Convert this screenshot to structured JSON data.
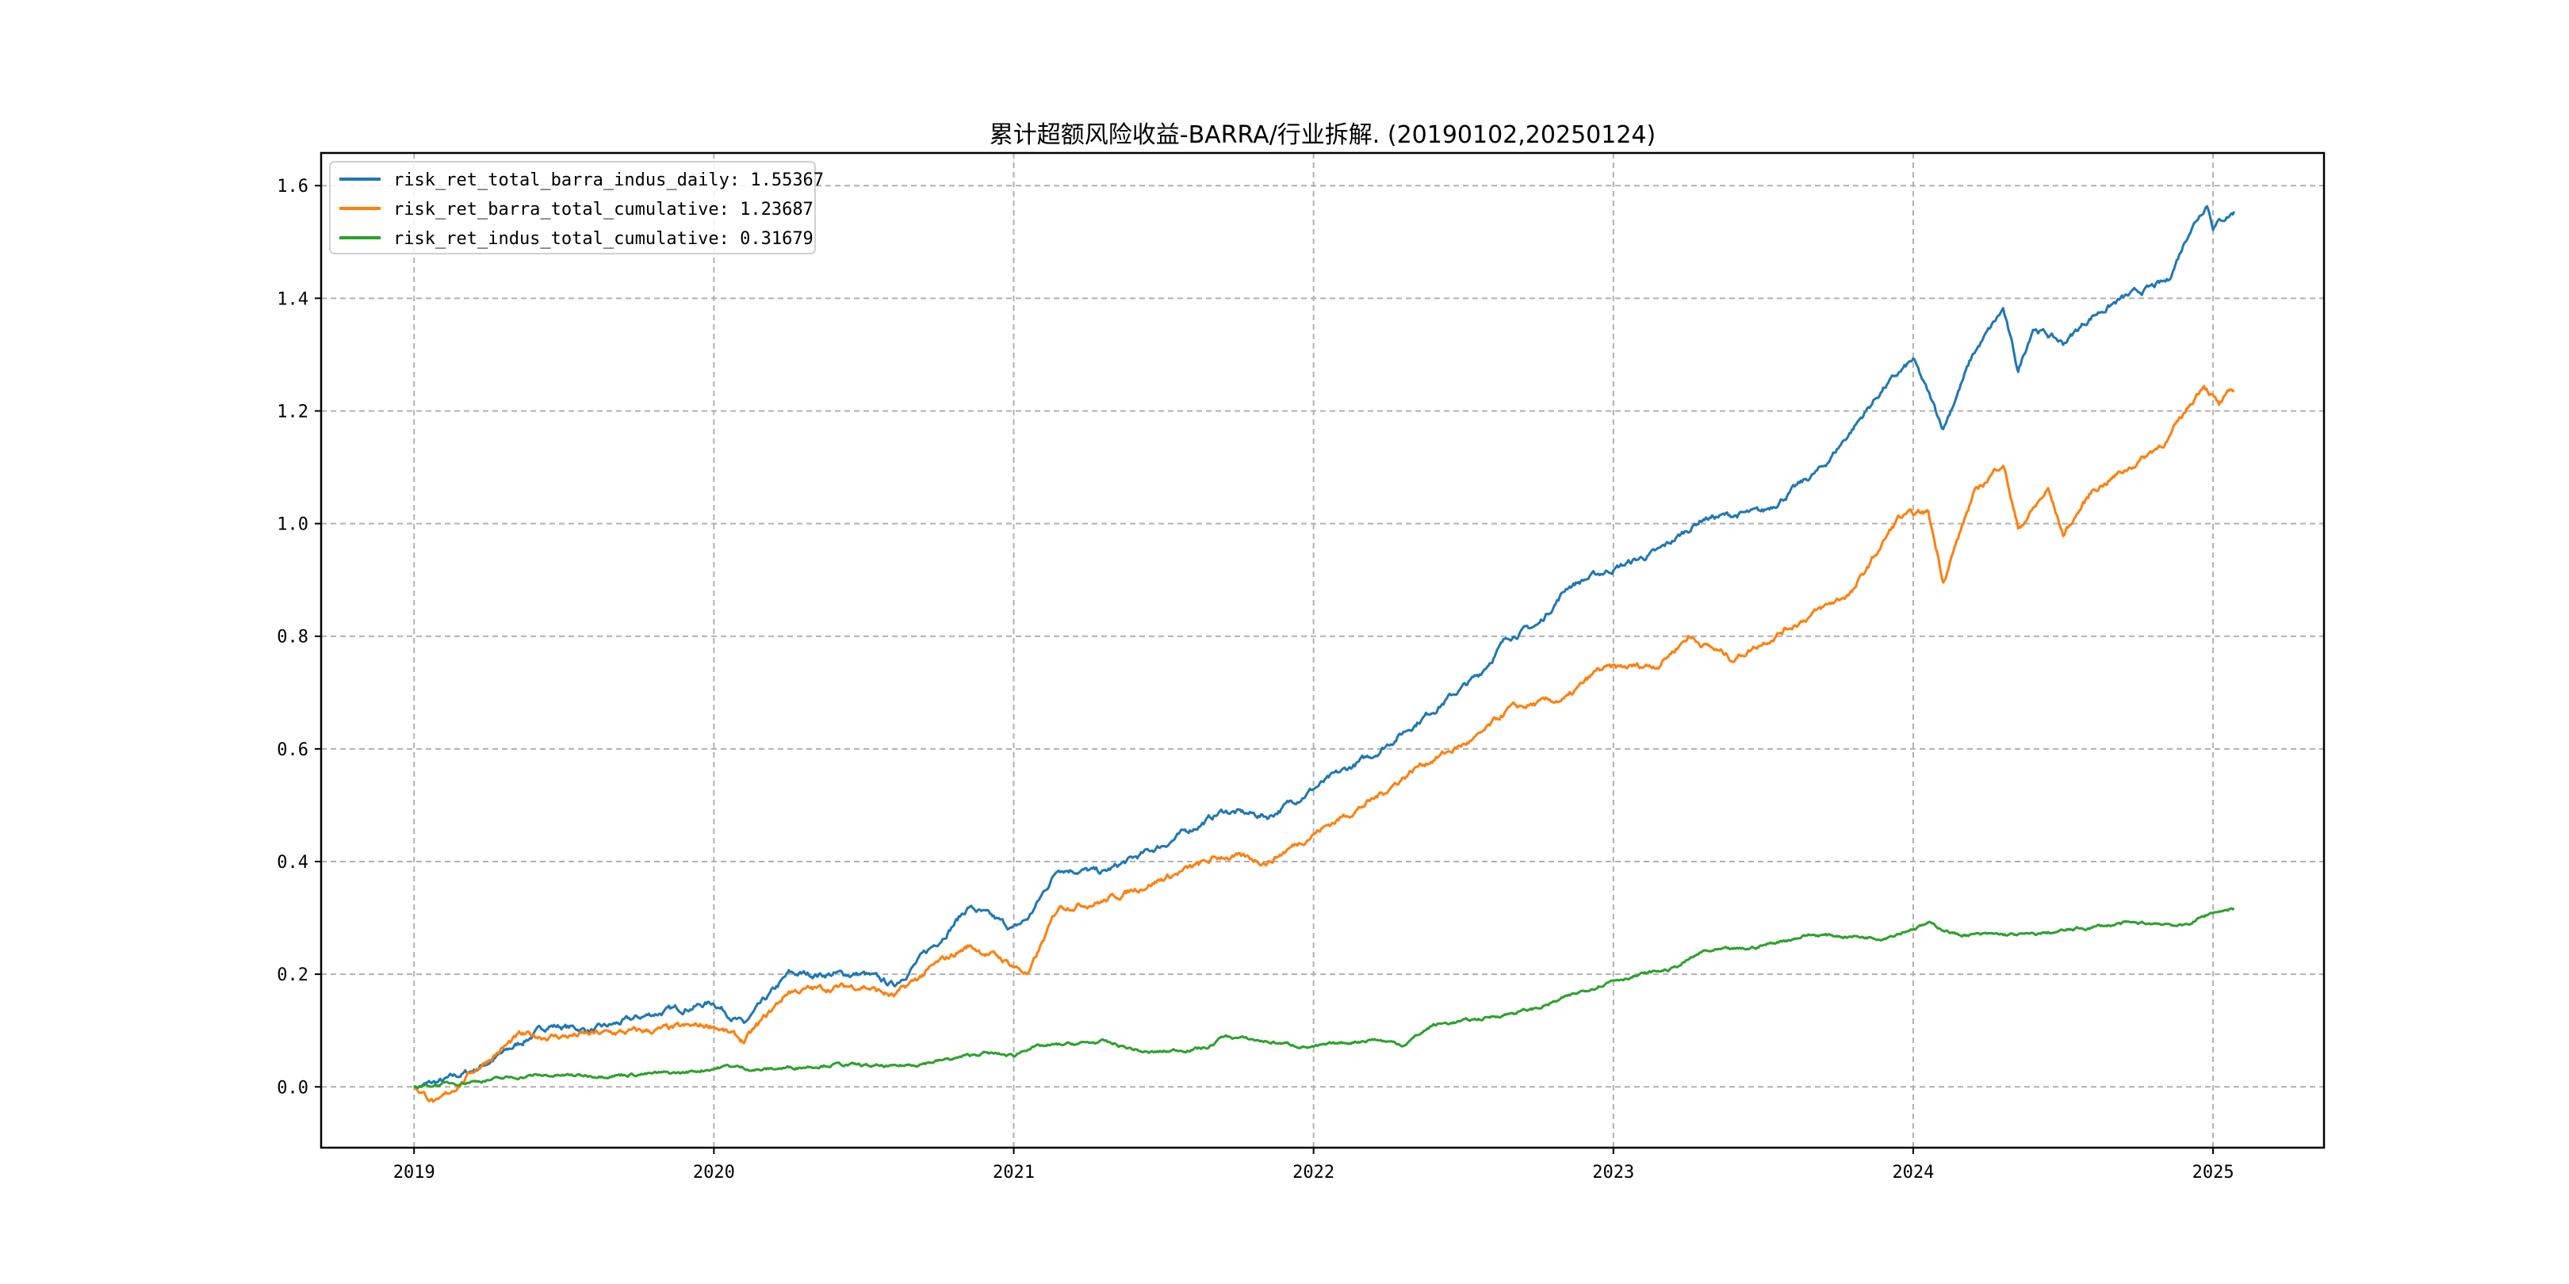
{
  "chart_data": {
    "type": "line",
    "title": "累计超额风险收益-BARRA/行业拆解. (20190102,20250124)",
    "xlabel": "",
    "ylabel": "",
    "xlim": [
      2018.69,
      2025.37
    ],
    "ylim": [
      -0.108,
      1.658
    ],
    "grid": true,
    "legend_placement": "top-left",
    "xticks": [
      2019,
      2020,
      2021,
      2022,
      2023,
      2024,
      2025
    ],
    "xtick_labels": [
      "2019",
      "2020",
      "2021",
      "2022",
      "2023",
      "2024",
      "2025"
    ],
    "yticks": [
      0.0,
      0.2,
      0.4,
      0.6,
      0.8,
      1.0,
      1.2,
      1.4,
      1.6
    ],
    "ytick_labels": [
      "0.0",
      "0.2",
      "0.4",
      "0.6",
      "0.8",
      "1.0",
      "1.2",
      "1.4",
      "1.6"
    ],
    "series": [
      {
        "name": "risk_ret_total_barra_indus_daily",
        "legend_label": "risk_ret_total_barra_indus_daily: 1.55367",
        "color": "#1f77b4",
        "x": [
          2019.0,
          2019.1,
          2019.2,
          2019.3,
          2019.45,
          2019.6,
          2019.8,
          2020.0,
          2020.1,
          2020.25,
          2020.5,
          2020.6,
          2020.75,
          2020.85,
          2021.0,
          2021.05,
          2021.15,
          2021.3,
          2021.5,
          2021.7,
          2021.85,
          2022.0,
          2022.2,
          2022.4,
          2022.55,
          2022.65,
          2022.75,
          2022.85,
          2023.0,
          2023.15,
          2023.3,
          2023.5,
          2023.7,
          2023.9,
          2024.0,
          2024.1,
          2024.2,
          2024.3,
          2024.35,
          2024.4,
          2024.5,
          2024.6,
          2024.7,
          2024.85,
          2024.92,
          2024.98,
          2025.0,
          2025.07
        ],
        "y": [
          0,
          0.01,
          0.03,
          0.06,
          0.11,
          0.1,
          0.13,
          0.15,
          0.11,
          0.2,
          0.2,
          0.18,
          0.26,
          0.32,
          0.28,
          0.3,
          0.39,
          0.38,
          0.43,
          0.49,
          0.48,
          0.53,
          0.59,
          0.67,
          0.73,
          0.8,
          0.82,
          0.89,
          0.92,
          0.95,
          1.01,
          1.02,
          1.1,
          1.24,
          1.29,
          1.17,
          1.3,
          1.38,
          1.27,
          1.35,
          1.32,
          1.37,
          1.4,
          1.43,
          1.52,
          1.57,
          1.53,
          1.554
        ]
      },
      {
        "name": "risk_ret_barra_total_cumulative",
        "legend_label": "risk_ret_barra_total_cumulative: 1.23687",
        "color": "#ff7f0e",
        "x": [
          2019.0,
          2019.08,
          2019.2,
          2019.35,
          2019.5,
          2019.8,
          2020.0,
          2020.1,
          2020.25,
          2020.5,
          2020.6,
          2020.75,
          2020.85,
          2020.95,
          2021.05,
          2021.15,
          2021.3,
          2021.5,
          2021.7,
          2021.85,
          2022.0,
          2022.2,
          2022.35,
          2022.55,
          2022.65,
          2022.85,
          2022.95,
          2023.15,
          2023.25,
          2023.4,
          2023.6,
          2023.8,
          2023.95,
          2024.05,
          2024.1,
          2024.2,
          2024.3,
          2024.35,
          2024.45,
          2024.5,
          2024.6,
          2024.75,
          2024.85,
          2024.97,
          2025.02,
          2025.07
        ],
        "y": [
          0,
          -0.03,
          0.03,
          0.09,
          0.09,
          0.1,
          0.11,
          0.08,
          0.17,
          0.18,
          0.16,
          0.22,
          0.25,
          0.23,
          0.2,
          0.32,
          0.33,
          0.37,
          0.41,
          0.4,
          0.45,
          0.51,
          0.57,
          0.62,
          0.67,
          0.69,
          0.74,
          0.75,
          0.8,
          0.76,
          0.82,
          0.88,
          1.01,
          1.02,
          0.9,
          1.05,
          1.11,
          0.99,
          1.06,
          0.98,
          1.06,
          1.11,
          1.15,
          1.25,
          1.21,
          1.237
        ]
      },
      {
        "name": "risk_ret_indus_total_cumulative",
        "legend_label": "risk_ret_indus_total_cumulative: 0.31679",
        "color": "#2ca02c",
        "x": [
          2019.0,
          2019.2,
          2019.4,
          2019.6,
          2019.9,
          2020.05,
          2020.15,
          2020.4,
          2020.6,
          2020.8,
          2020.9,
          2021.0,
          2021.05,
          2021.3,
          2021.45,
          2021.65,
          2021.7,
          2021.85,
          2022.0,
          2022.2,
          2022.3,
          2022.4,
          2022.55,
          2022.75,
          2022.85,
          2023.0,
          2023.2,
          2023.3,
          2023.45,
          2023.65,
          2023.9,
          2024.05,
          2024.15,
          2024.4,
          2024.7,
          2024.85,
          2024.9,
          2025.0,
          2025.07
        ],
        "y": [
          0,
          0.01,
          0.02,
          0.02,
          0.025,
          0.037,
          0.03,
          0.04,
          0.035,
          0.05,
          0.06,
          0.055,
          0.07,
          0.08,
          0.06,
          0.07,
          0.09,
          0.08,
          0.07,
          0.085,
          0.075,
          0.11,
          0.12,
          0.14,
          0.16,
          0.19,
          0.21,
          0.24,
          0.245,
          0.27,
          0.265,
          0.29,
          0.27,
          0.27,
          0.29,
          0.29,
          0.285,
          0.31,
          0.317
        ]
      }
    ]
  }
}
